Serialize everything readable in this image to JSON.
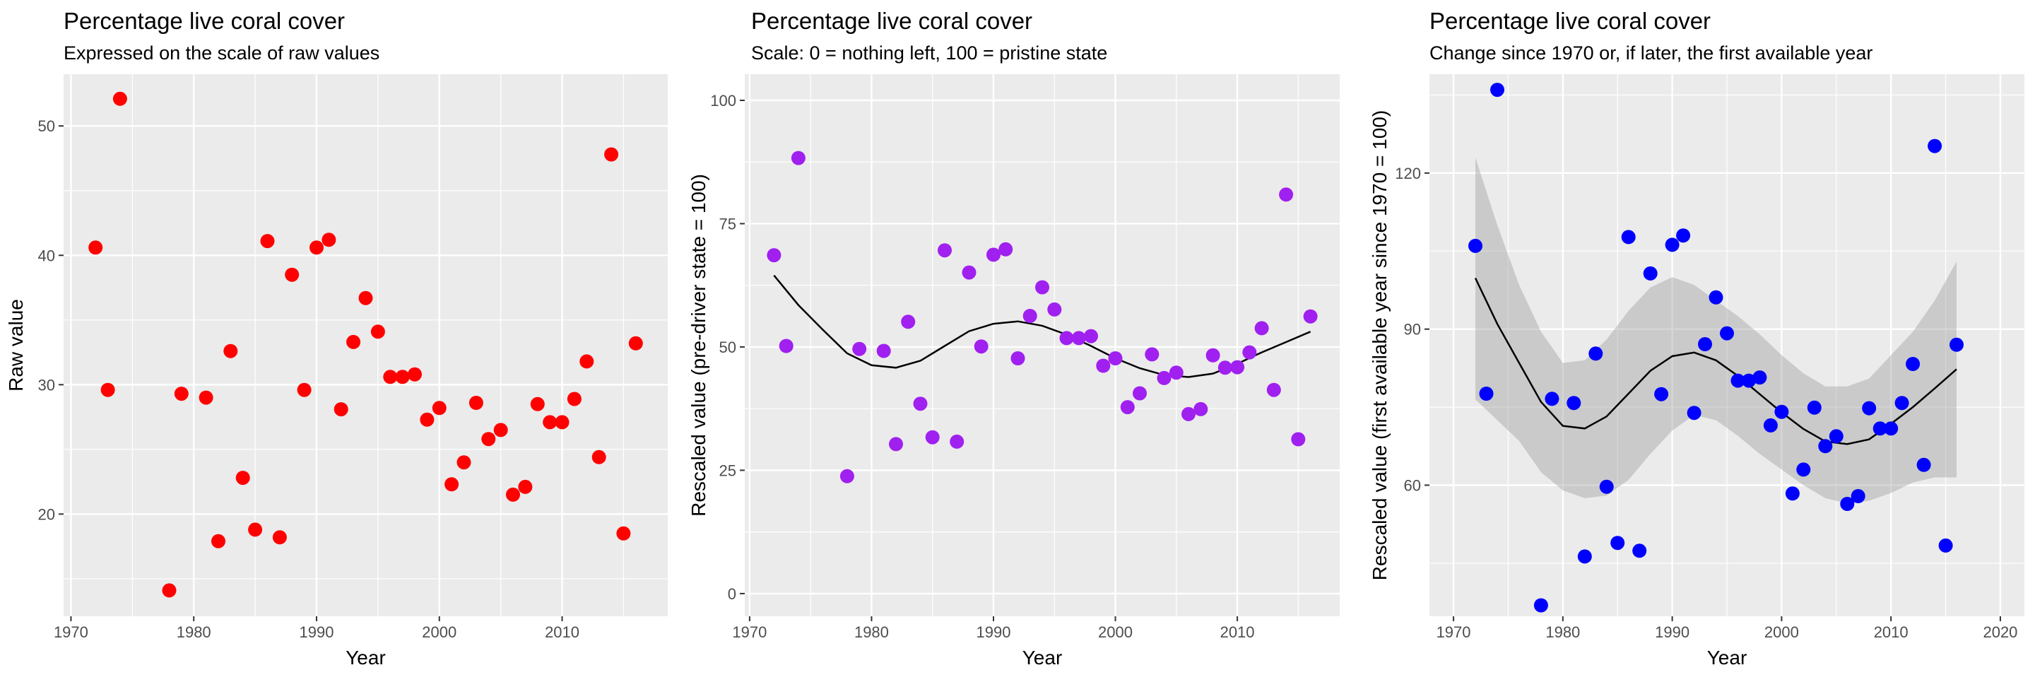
{
  "chart_data": [
    {
      "type": "scatter",
      "title": "Percentage live coral cover",
      "subtitle": "Expressed on the scale of raw values",
      "xlabel": "Year",
      "ylabel": "Raw value",
      "xlim": [
        1969.4,
        2018.6
      ],
      "ylim": [
        12.1,
        54.0
      ],
      "x_ticks": [
        1970,
        1980,
        1990,
        2000,
        2010
      ],
      "y_ticks": [
        20,
        30,
        40,
        50
      ],
      "grid": true,
      "point_color": "#FF0000",
      "x": [
        1972,
        1973,
        1974,
        1978,
        1979,
        1981,
        1982,
        1983,
        1984,
        1985,
        1986,
        1987,
        1988,
        1989,
        1990,
        1991,
        1992,
        1993,
        1994,
        1995,
        1996,
        1997,
        1998,
        1999,
        2000,
        2001,
        2002,
        2003,
        2004,
        2005,
        2006,
        2007,
        2008,
        2009,
        2010,
        2011,
        2012,
        2013,
        2014,
        2015,
        2016
      ],
      "y": [
        40.6,
        29.6,
        52.1,
        14.1,
        29.3,
        29.0,
        17.9,
        32.6,
        22.8,
        18.8,
        41.1,
        18.2,
        38.5,
        29.6,
        40.6,
        41.2,
        28.1,
        33.3,
        36.7,
        34.1,
        30.6,
        30.6,
        30.8,
        27.3,
        28.2,
        22.3,
        24.0,
        28.6,
        25.8,
        26.5,
        21.5,
        22.1,
        28.5,
        27.1,
        27.1,
        28.9,
        31.8,
        24.4,
        47.8,
        18.5,
        33.2
      ]
    },
    {
      "type": "scatter",
      "title": "Percentage live coral cover",
      "subtitle": "Scale: 0 = nothing left, 100 = pristine state",
      "xlabel": "Year",
      "ylabel": "Rescaled value (pre-driver state = 100)",
      "xlim": [
        1969.6,
        2018.4
      ],
      "ylim": [
        -4.6,
        105.3
      ],
      "x_ticks": [
        1970,
        1980,
        1990,
        2000,
        2010
      ],
      "y_ticks": [
        0,
        25,
        50,
        75,
        100
      ],
      "grid": true,
      "point_color": "#A020F0",
      "x": [
        1972,
        1973,
        1974,
        1978,
        1979,
        1981,
        1982,
        1983,
        1984,
        1985,
        1986,
        1987,
        1988,
        1989,
        1990,
        1991,
        1992,
        1993,
        1994,
        1995,
        1996,
        1997,
        1998,
        1999,
        2000,
        2001,
        2002,
        2003,
        2004,
        2005,
        2006,
        2007,
        2008,
        2009,
        2010,
        2011,
        2012,
        2013,
        2014,
        2015,
        2016
      ],
      "y": [
        68.6,
        50.2,
        88.3,
        23.8,
        49.6,
        49.2,
        30.3,
        55.1,
        38.5,
        31.7,
        69.6,
        30.8,
        65.1,
        50.1,
        68.7,
        69.8,
        47.7,
        56.3,
        62.1,
        57.6,
        51.8,
        51.8,
        52.2,
        46.2,
        47.7,
        37.8,
        40.6,
        48.5,
        43.7,
        44.8,
        36.4,
        37.4,
        48.3,
        45.8,
        45.9,
        48.9,
        53.8,
        41.3,
        80.9,
        31.3,
        56.2
      ],
      "smooth_x": [
        1972,
        1974,
        1976,
        1978,
        1980,
        1982,
        1984,
        1986,
        1988,
        1990,
        1992,
        1994,
        1996,
        1998,
        2000,
        2002,
        2004,
        2006,
        2008,
        2010,
        2012,
        2014,
        2016
      ],
      "smooth_y": [
        64.5,
        58.5,
        53.5,
        48.7,
        46.3,
        45.8,
        47.2,
        50.2,
        53.2,
        54.7,
        55.2,
        54.3,
        52.5,
        50.2,
        47.7,
        45.7,
        44.3,
        43.9,
        44.6,
        46.6,
        48.9,
        51.0,
        53.1
      ]
    },
    {
      "type": "scatter",
      "title": "Percentage live coral cover",
      "subtitle": "Change since 1970 or, if later, the first available year",
      "xlabel": "Year",
      "ylabel": "Rescaled value (first available year since 1970 = 100)",
      "xlim": [
        1967.8,
        2022.2
      ],
      "ylim": [
        34.8,
        139.0
      ],
      "x_ticks": [
        1970,
        1980,
        1990,
        2000,
        2010,
        2020
      ],
      "y_ticks": [
        60,
        90,
        120
      ],
      "grid": true,
      "point_color": "#0000FF",
      "x": [
        1972,
        1973,
        1974,
        1978,
        1979,
        1981,
        1982,
        1983,
        1984,
        1985,
        1986,
        1987,
        1988,
        1989,
        1990,
        1991,
        1992,
        1993,
        1994,
        1995,
        1996,
        1997,
        1998,
        1999,
        2000,
        2001,
        2002,
        2003,
        2004,
        2005,
        2006,
        2007,
        2008,
        2009,
        2010,
        2011,
        2012,
        2013,
        2014,
        2015,
        2016
      ],
      "y": [
        106.0,
        77.6,
        136.0,
        36.9,
        76.6,
        75.8,
        46.3,
        85.3,
        59.7,
        48.9,
        107.7,
        47.4,
        100.7,
        77.5,
        106.2,
        108.0,
        73.9,
        87.1,
        96.1,
        89.2,
        80.1,
        80.1,
        80.7,
        71.5,
        74.1,
        58.4,
        63.0,
        74.9,
        67.5,
        69.4,
        56.4,
        57.9,
        74.8,
        70.9,
        70.9,
        75.8,
        83.3,
        63.9,
        125.2,
        48.4,
        87.0
      ],
      "smooth_x": [
        1972,
        1974,
        1976,
        1978,
        1980,
        1982,
        1984,
        1986,
        1988,
        1990,
        1992,
        1994,
        1996,
        1998,
        2000,
        2002,
        2004,
        2006,
        2008,
        2010,
        2012,
        2014,
        2016
      ],
      "smooth_y": [
        99.8,
        91.0,
        83.5,
        76.0,
        71.4,
        70.9,
        73.2,
        77.6,
        82.0,
        84.8,
        85.5,
        84.0,
        81.0,
        77.5,
        74.0,
        70.8,
        68.4,
        67.9,
        68.8,
        71.8,
        75.0,
        78.6,
        82.3
      ],
      "ci_lower": [
        76.5,
        72.5,
        68.5,
        62.5,
        59.0,
        57.5,
        58.0,
        61.0,
        66.0,
        70.5,
        73.5,
        72.5,
        69.5,
        66.0,
        63.0,
        60.0,
        57.5,
        56.5,
        57.0,
        58.5,
        60.5,
        61.5,
        61.5
      ],
      "ci_upper": [
        123.0,
        110.0,
        98.5,
        89.5,
        83.5,
        84.0,
        88.0,
        93.5,
        98.0,
        100.0,
        98.5,
        95.5,
        92.5,
        89.0,
        85.0,
        81.5,
        79.0,
        79.0,
        80.5,
        85.0,
        89.5,
        95.5,
        103.0
      ]
    }
  ]
}
